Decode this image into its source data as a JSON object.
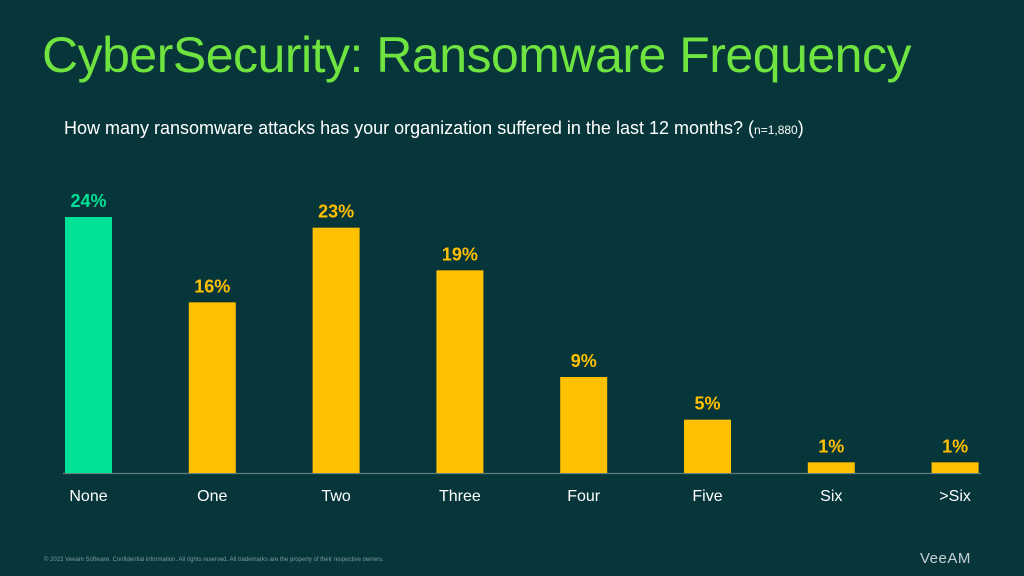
{
  "header": {
    "title": "CyberSecurity: Ransomware Frequency",
    "subtitle": "How many ransomware attacks has your organization suffered in the last 12 months? (",
    "sample_size": "n=1,880",
    "subtitle_close": ")"
  },
  "footer": {
    "copyright": "© 2022 Veeam Software. Confidential information. All rights reserved. All trademarks are the property of their respective owners.",
    "brand": "VeeAM"
  },
  "colors": {
    "background": "#06363a",
    "title": "#6fe33f",
    "highlight_bar": "#00e096",
    "bar": "#ffc000",
    "axis": "#5f7f80",
    "label": "#ffffff"
  },
  "chart_data": {
    "type": "bar",
    "categories": [
      "None",
      "One",
      "Two",
      "Three",
      "Four",
      "Five",
      "Six",
      ">Six"
    ],
    "values": [
      24,
      16,
      23,
      19,
      9,
      5,
      1,
      1
    ],
    "data_labels": [
      "24%",
      "16%",
      "23%",
      "19%",
      "9%",
      "5%",
      "1%",
      "1%"
    ],
    "highlight_index": 0,
    "unit": "%",
    "ylim": [
      0,
      24
    ],
    "grid": false,
    "legend": "none"
  }
}
